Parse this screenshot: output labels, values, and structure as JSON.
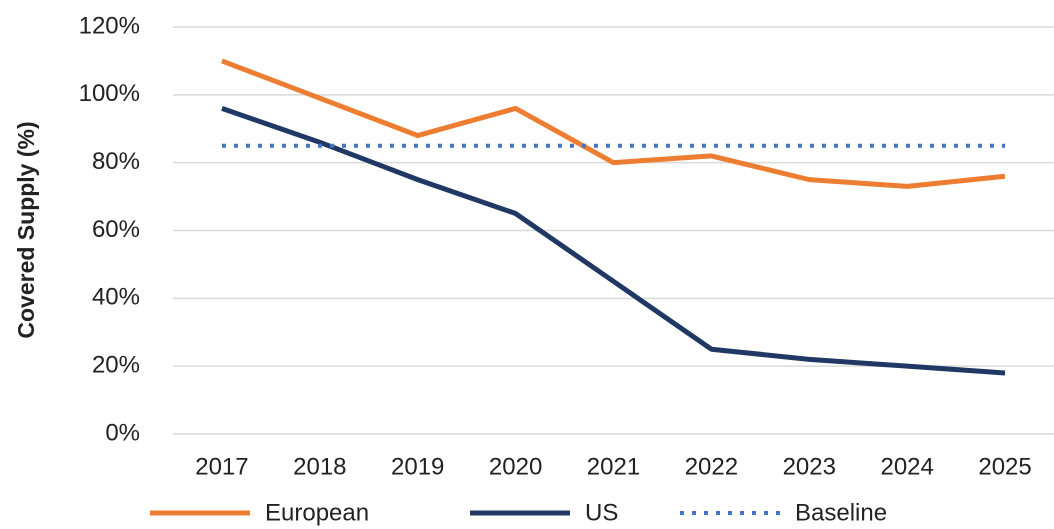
{
  "chart_data": {
    "type": "line",
    "y_label": "Covered Supply (%)",
    "categories": [
      "2017",
      "2018",
      "2019",
      "2020",
      "2021",
      "2022",
      "2023",
      "2024",
      "2025"
    ],
    "series": [
      {
        "name": "European",
        "color": "#ed7d31",
        "style": "solid",
        "values": [
          110,
          99,
          88,
          96,
          80,
          82,
          75,
          73,
          76
        ]
      },
      {
        "name": "US",
        "color": "#1f3864",
        "style": "solid",
        "values": [
          96,
          86,
          75,
          65,
          45,
          25,
          22,
          20,
          18
        ]
      },
      {
        "name": "Baseline",
        "color": "#4472c4",
        "style": "dotted",
        "values": [
          85,
          85,
          85,
          85,
          85,
          85,
          85,
          85,
          85
        ]
      }
    ],
    "ylim": [
      0,
      120
    ],
    "yticks": [
      {
        "value": 0,
        "label": "0%"
      },
      {
        "value": 20,
        "label": "20%"
      },
      {
        "value": 40,
        "label": "40%"
      },
      {
        "value": 60,
        "label": "60%"
      },
      {
        "value": 80,
        "label": "80%"
      },
      {
        "value": 100,
        "label": "100%"
      },
      {
        "value": 120,
        "label": "120%"
      }
    ],
    "grid": true,
    "legend": "bottom"
  }
}
